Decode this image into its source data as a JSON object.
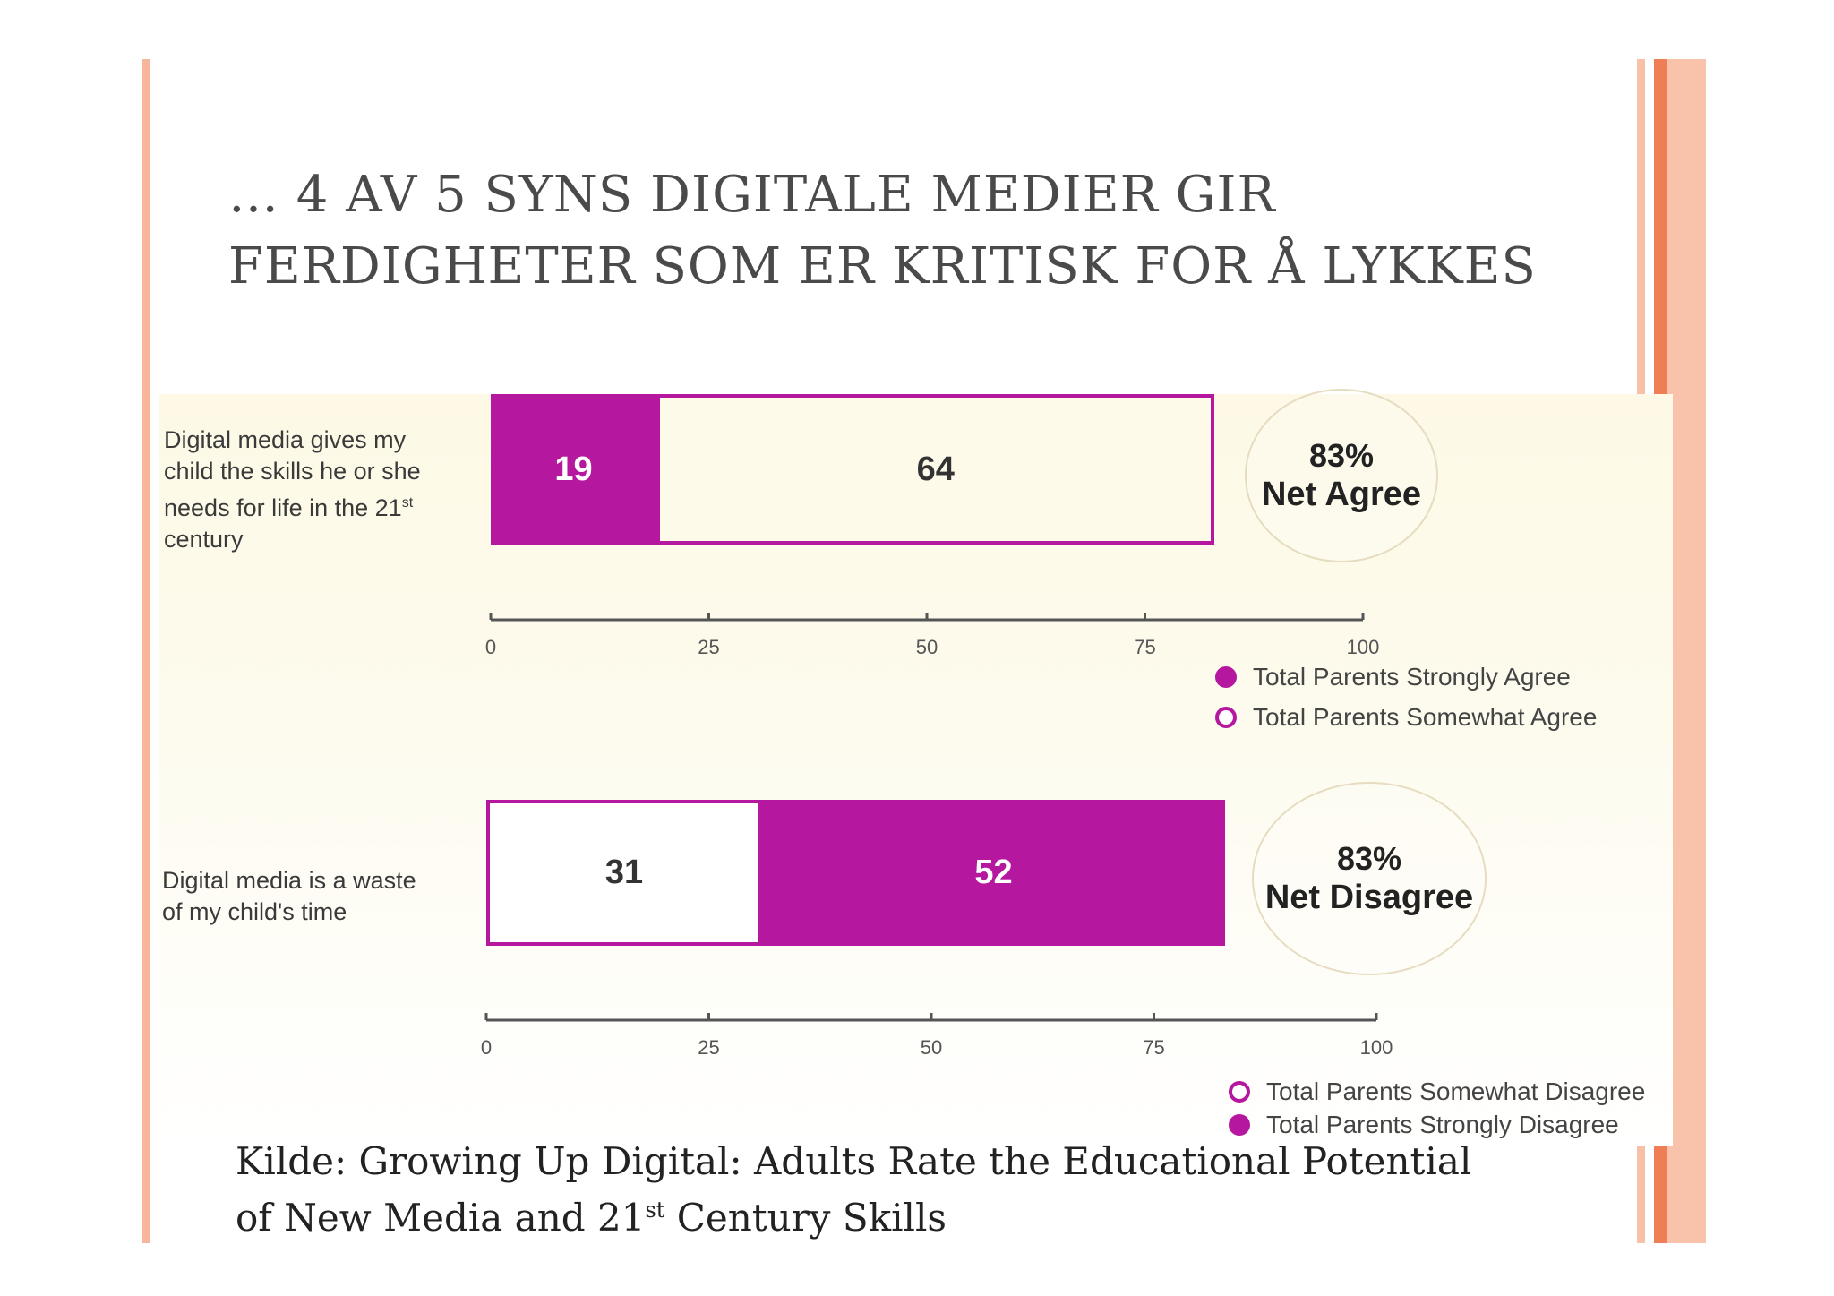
{
  "slide_title": "… 4 AV 5 SYNS DIGITALE MEDIER GIR FERDIGHETER SOM ER KRITISK FOR Å LYKKES",
  "colors": {
    "strong": "#b5179e",
    "stripe": "#f7b59a",
    "stripe_dark": "#ef7d55"
  },
  "source": {
    "prefix": "Kilde: Growing Up Digital: Adults Rate the Educational Potential",
    "line2_pre": "of New Media and 21",
    "line2_sup": "st",
    "line2_post": " Century Skills"
  },
  "chart_data": [
    {
      "type": "bar",
      "orientation": "horizontal",
      "stacked": true,
      "category": "Digital media gives my child the skills he or she needs for life in the 21st century",
      "category_lines": [
        "Digital media gives my",
        "child the skills he or she",
        "needs for life in the 21"
      ],
      "category_sup": "st",
      "category_last": "century",
      "series": [
        {
          "name": "Total Parents Strongly Agree",
          "value": 19,
          "value_label": "19",
          "style": "filled"
        },
        {
          "name": "Total Parents Somewhat Agree",
          "value": 64,
          "value_label": "64",
          "style": "outline"
        }
      ],
      "net": {
        "pct": "83%",
        "label": "Net Agree"
      },
      "xlim": [
        0,
        100
      ],
      "ticks": [
        "0",
        "25",
        "50",
        "75",
        "100"
      ],
      "legend": [
        "Total Parents Strongly Agree",
        "Total Parents Somewhat Agree"
      ]
    },
    {
      "type": "bar",
      "orientation": "horizontal",
      "stacked": true,
      "category": "Digital media is a waste of my child's time",
      "category_lines": [
        "Digital media is a waste",
        "of my child's time"
      ],
      "series": [
        {
          "name": "Total Parents Somewhat Disagree",
          "value": 31,
          "value_label": "31",
          "style": "outline"
        },
        {
          "name": "Total Parents Strongly Disagree",
          "value": 52,
          "value_label": "52",
          "style": "filled"
        }
      ],
      "net": {
        "pct": "83%",
        "label": "Net Disagree"
      },
      "xlim": [
        0,
        100
      ],
      "ticks": [
        "0",
        "25",
        "50",
        "75",
        "100"
      ],
      "legend": [
        "Total Parents Somewhat Disagree",
        "Total Parents Strongly Disagree"
      ]
    }
  ]
}
